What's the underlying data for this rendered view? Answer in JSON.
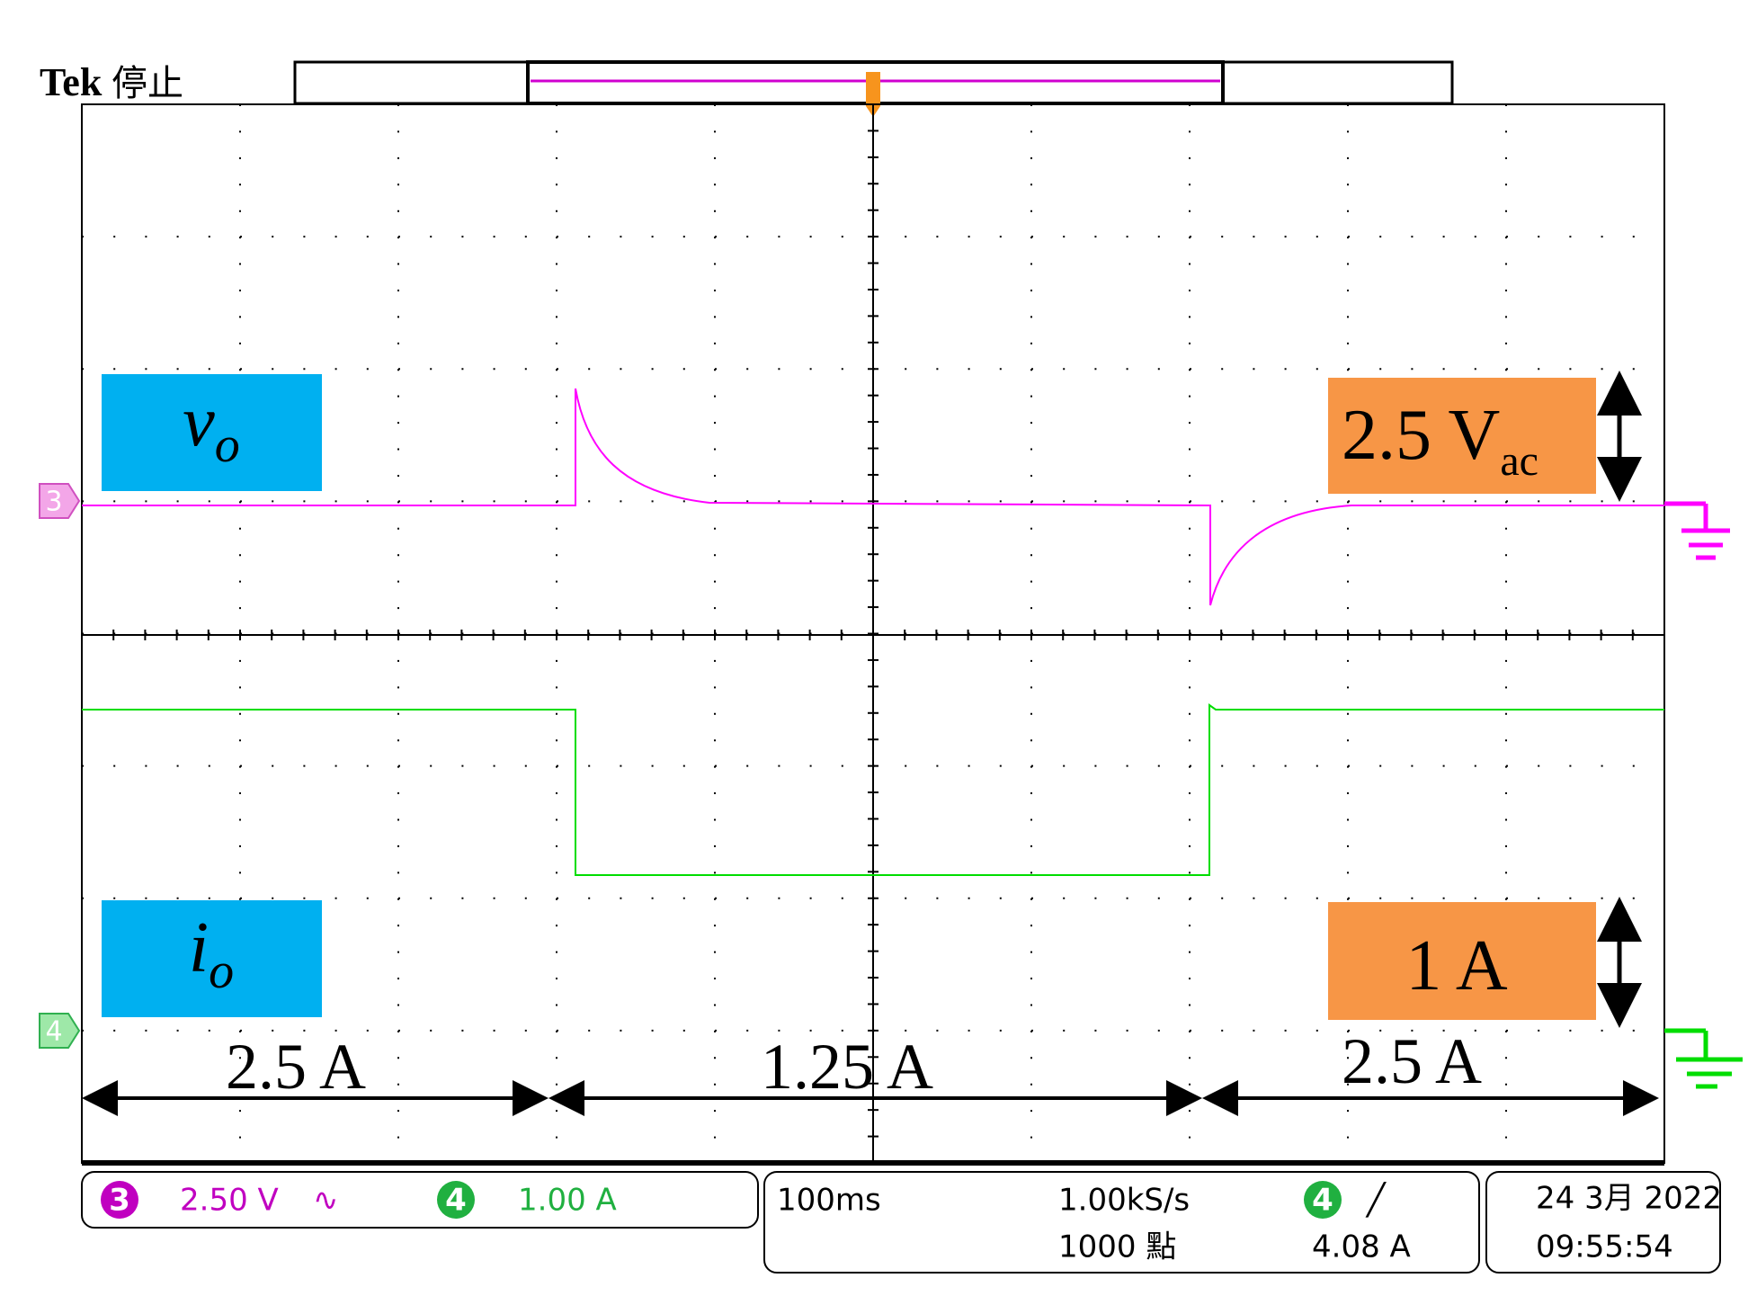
{
  "header": {
    "brand": "Tek",
    "status": "停止"
  },
  "trace_labels": {
    "vo": {
      "main": "v",
      "sub": "o"
    },
    "io": {
      "main": "i",
      "sub": "o"
    }
  },
  "scale_labels": {
    "voltage": {
      "main": "2.5 V",
      "sub": "ac"
    },
    "current": "1 A"
  },
  "channel_markers": [
    "3",
    "4"
  ],
  "segments": [
    "2.5 A",
    "1.25 A",
    "2.5 A"
  ],
  "status_bar": {
    "ch3": {
      "number": "3",
      "scale": "2.50 V",
      "coupling": "∿"
    },
    "ch4": {
      "number": "4",
      "scale": "1.00 A"
    },
    "timebase": "100ms",
    "sample_rate": "1.00kS/s",
    "record": "1000 點",
    "trigger": {
      "source": "4",
      "slope": "╱",
      "level": "4.08 A"
    },
    "date": "24 3月 2022",
    "time": "09:55:54"
  }
}
